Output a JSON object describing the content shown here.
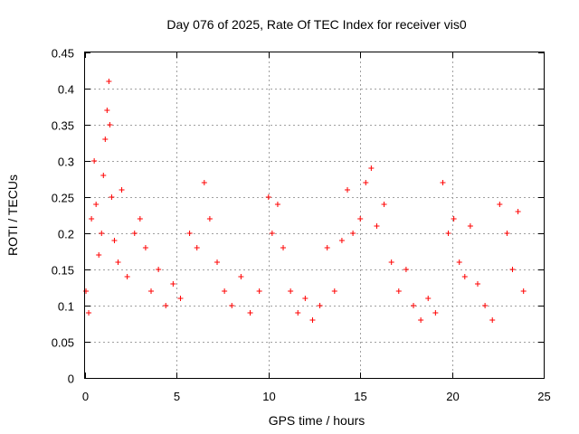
{
  "chart_data": {
    "type": "scatter",
    "title": "Day 076 of 2025, Rate Of TEC Index for receiver vis0",
    "xlabel": "GPS time / hours",
    "ylabel": "ROTI / TECUs",
    "xlim": [
      0,
      25
    ],
    "ylim": [
      0,
      0.45
    ],
    "x_ticks": [
      "0",
      "5",
      "10",
      "15",
      "20",
      "25"
    ],
    "y_ticks": [
      "0",
      "0.05",
      "0.1",
      "0.15",
      "0.2",
      "0.25",
      "0.3",
      "0.35",
      "0.4",
      "0.45"
    ],
    "grid": true,
    "marker": "+",
    "color": "#ff0000",
    "series": [
      {
        "values_sampled": [
          [
            0.05,
            0.12
          ],
          [
            0.2,
            0.09
          ],
          [
            0.35,
            0.22
          ],
          [
            0.5,
            0.3
          ],
          [
            0.6,
            0.24
          ],
          [
            0.75,
            0.17
          ],
          [
            0.9,
            0.2
          ],
          [
            1.0,
            0.28
          ],
          [
            1.1,
            0.33
          ],
          [
            1.2,
            0.37
          ],
          [
            1.3,
            0.41
          ],
          [
            1.35,
            0.35
          ],
          [
            1.45,
            0.25
          ],
          [
            1.6,
            0.19
          ],
          [
            1.8,
            0.16
          ],
          [
            2.0,
            0.26
          ],
          [
            2.3,
            0.14
          ],
          [
            2.7,
            0.2
          ],
          [
            3.0,
            0.22
          ],
          [
            3.3,
            0.18
          ],
          [
            3.6,
            0.12
          ],
          [
            4.0,
            0.15
          ],
          [
            4.4,
            0.1
          ],
          [
            4.8,
            0.13
          ],
          [
            5.2,
            0.11
          ],
          [
            5.7,
            0.2
          ],
          [
            6.1,
            0.18
          ],
          [
            6.5,
            0.27
          ],
          [
            6.8,
            0.22
          ],
          [
            7.2,
            0.16
          ],
          [
            7.6,
            0.12
          ],
          [
            8.0,
            0.1
          ],
          [
            8.5,
            0.14
          ],
          [
            9.0,
            0.09
          ],
          [
            9.5,
            0.12
          ],
          [
            10.0,
            0.25
          ],
          [
            10.2,
            0.2
          ],
          [
            10.5,
            0.24
          ],
          [
            10.8,
            0.18
          ],
          [
            11.2,
            0.12
          ],
          [
            11.6,
            0.09
          ],
          [
            12.0,
            0.11
          ],
          [
            12.4,
            0.08
          ],
          [
            12.8,
            0.1
          ],
          [
            13.2,
            0.18
          ],
          [
            13.6,
            0.12
          ],
          [
            14.0,
            0.19
          ],
          [
            14.3,
            0.26
          ],
          [
            14.6,
            0.2
          ],
          [
            15.0,
            0.22
          ],
          [
            15.3,
            0.27
          ],
          [
            15.6,
            0.29
          ],
          [
            15.9,
            0.21
          ],
          [
            16.3,
            0.24
          ],
          [
            16.7,
            0.16
          ],
          [
            17.1,
            0.12
          ],
          [
            17.5,
            0.15
          ],
          [
            17.9,
            0.1
          ],
          [
            18.3,
            0.08
          ],
          [
            18.7,
            0.11
          ],
          [
            19.1,
            0.09
          ],
          [
            19.5,
            0.27
          ],
          [
            19.8,
            0.2
          ],
          [
            20.1,
            0.22
          ],
          [
            20.4,
            0.16
          ],
          [
            20.7,
            0.14
          ],
          [
            21.0,
            0.21
          ],
          [
            21.4,
            0.13
          ],
          [
            21.8,
            0.1
          ],
          [
            22.2,
            0.08
          ],
          [
            22.6,
            0.24
          ],
          [
            23.0,
            0.2
          ],
          [
            23.3,
            0.15
          ],
          [
            23.6,
            0.23
          ],
          [
            23.9,
            0.12
          ]
        ]
      }
    ]
  }
}
